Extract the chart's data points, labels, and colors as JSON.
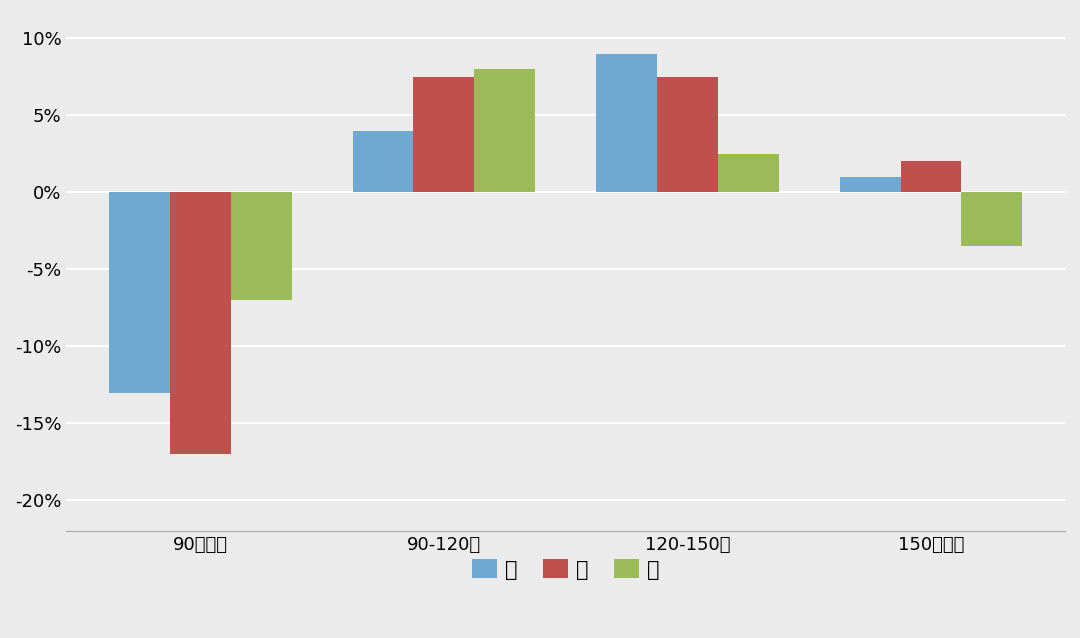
{
  "categories": [
    "90㎡以下",
    "90-120㎡",
    "120-150㎡",
    "150㎡以上"
  ],
  "series": {
    "高": [
      -0.13,
      0.04,
      0.09,
      0.01
    ],
    "中": [
      -0.17,
      0.075,
      0.075,
      0.02
    ],
    "低": [
      -0.07,
      0.08,
      0.025,
      -0.035
    ]
  },
  "colors": {
    "高": "#6fa8d0",
    "中": "#c0504d",
    "低": "#9bbb59"
  },
  "ylim": [
    -0.22,
    0.115
  ],
  "yticks": [
    -0.2,
    -0.15,
    -0.1,
    -0.05,
    0.0,
    0.05,
    0.1
  ],
  "ytick_labels": [
    "-20%",
    "-15%",
    "-10%",
    "-5%",
    "0%",
    "5%",
    "10%"
  ],
  "background_color": "#ebebeb",
  "grid_color": "#ffffff",
  "bar_width": 0.25,
  "legend_labels": [
    "高",
    "中",
    "低"
  ]
}
